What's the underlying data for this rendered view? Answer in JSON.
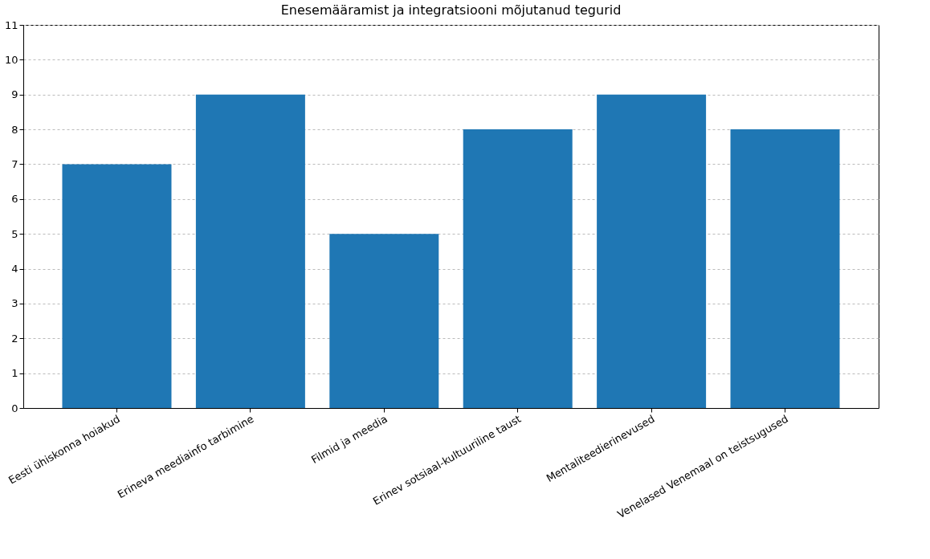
{
  "chart_data": {
    "type": "bar",
    "title": "Enesemääramist ja integratsiooni mõjutanud tegurid",
    "categories": [
      "Eesti ühiskonna hoiakud",
      "Erineva meediainfo tarbimine",
      "Filmid ja meedia",
      "Erinev sotsiaal-kultuuriline taust",
      "Mentaliteedierinevused",
      "Venelased Venemaal on teistsugused"
    ],
    "values": [
      7,
      9,
      5,
      8,
      9,
      8
    ],
    "color": "#1f77b4",
    "ylim": [
      0,
      11
    ],
    "yticks": [
      0,
      1,
      2,
      3,
      4,
      5,
      6,
      7,
      8,
      9,
      10,
      11
    ],
    "grid": "y"
  }
}
